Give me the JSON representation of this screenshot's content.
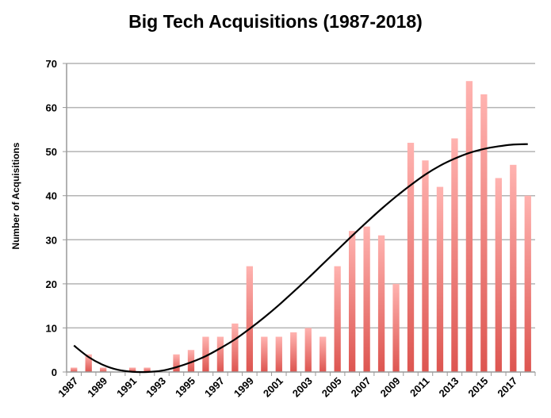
{
  "chart_data": {
    "type": "bar",
    "title": "Big Tech Acquisitions (1987-2018)",
    "xlabel": "",
    "ylabel": "Number of Acquisitions",
    "ylim": [
      0,
      70
    ],
    "yticks": [
      "0",
      "10",
      "20",
      "30",
      "40",
      "50",
      "60",
      "70"
    ],
    "grid": true,
    "categories": [
      1987,
      1988,
      1989,
      1990,
      1991,
      1992,
      1993,
      1994,
      1995,
      1996,
      1997,
      1998,
      1999,
      2000,
      2001,
      2002,
      2003,
      2004,
      2005,
      2006,
      2007,
      2008,
      2009,
      2010,
      2011,
      2012,
      2013,
      2014,
      2015,
      2016,
      2017,
      2018
    ],
    "xtick_labels": [
      "1987",
      "1989",
      "1991",
      "1993",
      "1995",
      "1997",
      "1999",
      "2001",
      "2003",
      "2005",
      "2007",
      "2009",
      "2011",
      "2013",
      "2015",
      "2017"
    ],
    "values": [
      1,
      4,
      1,
      0,
      1,
      1,
      0,
      4,
      5,
      8,
      8,
      11,
      24,
      8,
      8,
      9,
      10,
      8,
      24,
      32,
      33,
      31,
      20,
      52,
      48,
      42,
      53,
      66,
      63,
      44,
      47,
      40
    ],
    "trendline": {
      "type": "polynomial",
      "values": [
        6,
        3.4,
        1.6,
        0.5,
        0.05,
        0,
        0.3,
        1.1,
        2.2,
        3.6,
        5.4,
        7.4,
        9.8,
        12.4,
        15.2,
        18.2,
        21.3,
        24.5,
        27.7,
        30.9,
        34,
        37,
        39.8,
        42.4,
        44.8,
        46.8,
        48.4,
        49.7,
        50.6,
        51.2,
        51.6,
        51.7
      ],
      "color": "#000000"
    },
    "bar_color_top": "#ffb3b0",
    "bar_color_bottom": "#dd5550"
  }
}
